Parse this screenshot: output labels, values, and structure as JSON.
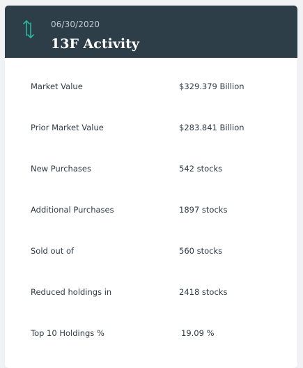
{
  "header": {
    "date": "06/30/2020",
    "title": "13F Activity",
    "icon": "up-down-arrows-icon",
    "background_color": "#2d3e48",
    "icon_color": "#2bb8a0"
  },
  "rows": [
    {
      "label": "Market Value",
      "value": "$329.379 Billion"
    },
    {
      "label": "Prior Market Value",
      "value": "$283.841 Billion"
    },
    {
      "label": "New Purchases",
      "value": "542 stocks"
    },
    {
      "label": "Additional Purchases",
      "value": "1897 stocks"
    },
    {
      "label": "Sold out of",
      "value": "560 stocks"
    },
    {
      "label": "Reduced holdings in",
      "value": "2418 stocks"
    },
    {
      "label": "Top 10 Holdings %",
      "value": "19.09 %"
    }
  ]
}
